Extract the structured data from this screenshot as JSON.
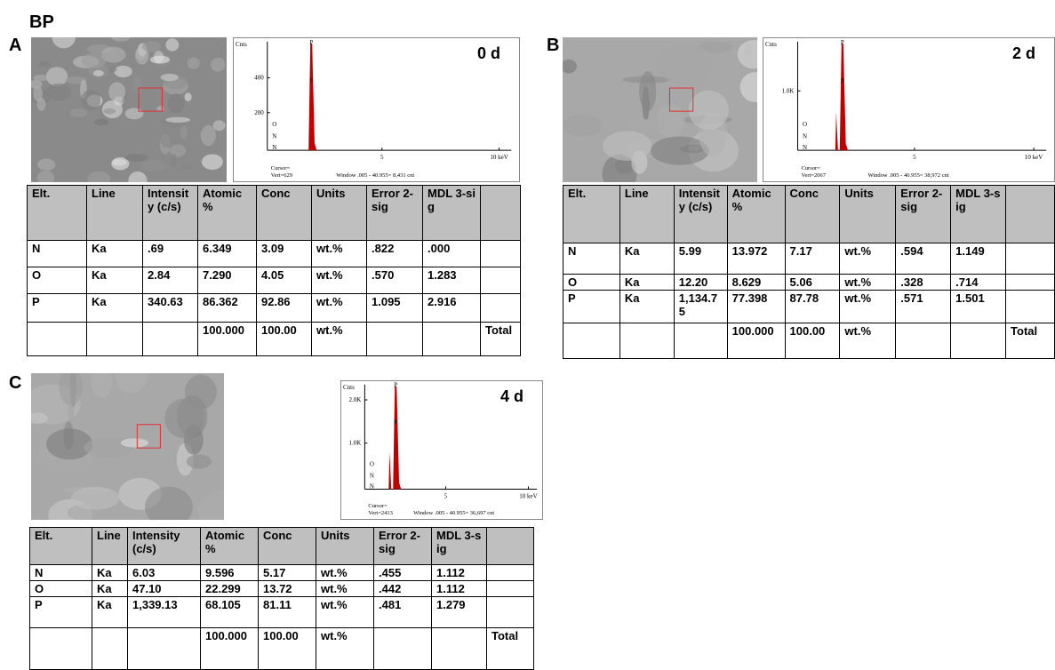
{
  "figure_title": "BP",
  "panels": [
    {
      "label": "A",
      "time": "0 d",
      "spectrum": {
        "y_label": "Cnts",
        "y_ticks": [
          "400",
          "200"
        ],
        "x_ticks": [
          "5",
          "10 keV"
        ],
        "peak_labels": [
          "P",
          "P",
          "O",
          "N",
          "N"
        ],
        "cursor": "Cursor=",
        "vert": "Vert=629",
        "window": "Window .005 - 40.955=   8,431 cnt"
      },
      "table": {
        "header": [
          "Elt.",
          "Line",
          "Intensity (c/s)",
          "Atomic %",
          "Conc",
          "Units",
          "Error 2-sig",
          "MDL 3-sig",
          null
        ],
        "rows": [
          [
            "N",
            "Ka",
            ".69",
            "6.349",
            "3.09",
            "wt.%",
            ".822",
            ".000",
            null
          ],
          [
            "O",
            "Ka",
            "2.84",
            "7.290",
            "4.05",
            "wt.%",
            ".570",
            "1.283",
            null
          ],
          [
            "P",
            "Ka",
            "340.63",
            "86.362",
            "92.86",
            "wt.%",
            "1.095",
            "2.916",
            null
          ],
          [
            null,
            null,
            null,
            "100.000",
            "100.00",
            "wt.%",
            null,
            null,
            "Total"
          ]
        ]
      }
    },
    {
      "label": "B",
      "time": "2 d",
      "spectrum": {
        "y_label": "Cnts",
        "y_ticks": [
          "1.0K"
        ],
        "x_ticks": [
          "5",
          "10 keV"
        ],
        "peak_labels": [
          "P",
          "P",
          "O",
          "N",
          "N"
        ],
        "cursor": "Cursor=",
        "vert": "Vert=2067",
        "window": "Window .005 - 40.955=   38,972 cnt"
      },
      "table": {
        "header": [
          "Elt.",
          "Line",
          "Intensity (c/s)",
          "Atomic %",
          "Conc",
          "Units",
          "Error 2-sig",
          "MDL 3-sig",
          null
        ],
        "rows": [
          [
            "N",
            "Ka",
            "5.99",
            "13.972",
            "7.17",
            "wt.%",
            ".594",
            "1.149",
            null
          ],
          [
            "O",
            "Ka",
            "12.20",
            "8.629",
            "5.06",
            "wt.%",
            ".328",
            ".714",
            null
          ],
          [
            "P",
            "Ka",
            "1,134.75",
            "77.398",
            "87.78",
            "wt.%",
            ".571",
            "1.501",
            null
          ],
          [
            null,
            null,
            null,
            "100.000",
            "100.00",
            "wt.%",
            null,
            null,
            "Total"
          ]
        ]
      }
    },
    {
      "label": "C",
      "time": "4 d",
      "spectrum": {
        "y_label": "Cnts",
        "y_ticks": [
          "2.0K",
          "1.0K"
        ],
        "x_ticks": [
          "5",
          "10 keV"
        ],
        "peak_labels": [
          "P",
          "P",
          "O",
          "N",
          "N"
        ],
        "cursor": "Cursor=",
        "vert": "Vert=2413",
        "window": "Window .005 - 40.955=   36,697 cnt"
      },
      "table": {
        "header": [
          "Elt.",
          "Line",
          "Intensity (c/s)",
          "Atomic %",
          "Conc",
          "Units",
          "Error 2-sig",
          "MDL 3-sig",
          null
        ],
        "rows": [
          [
            "N",
            "Ka",
            "6.03",
            "9.596",
            "5.17",
            "wt.%",
            ".455",
            "1.112",
            null
          ],
          [
            "O",
            "Ka",
            "47.10",
            "22.299",
            "13.72",
            "wt.%",
            ".442",
            "1.112",
            null
          ],
          [
            "P",
            "Ka",
            "1,339.13",
            "68.105",
            "81.11",
            "wt.%",
            ".481",
            "1.279",
            null
          ],
          [
            null,
            null,
            null,
            "100.000",
            "100.00",
            "wt.%",
            null,
            null,
            "Total"
          ]
        ]
      }
    }
  ]
}
